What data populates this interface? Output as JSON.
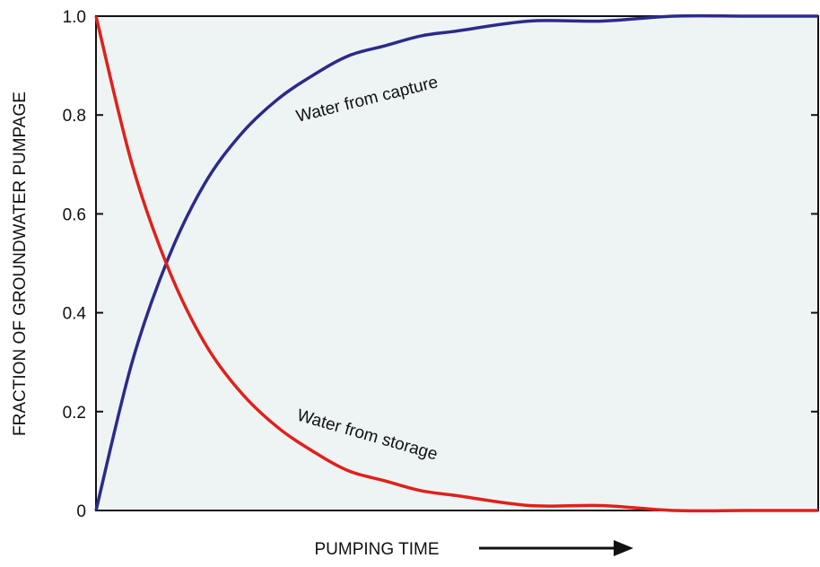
{
  "chart_data": {
    "type": "line",
    "y_label": "FRACTION OF GROUNDWATER PUMPAGE",
    "x_label": "PUMPING TIME",
    "x": [
      0,
      0.05,
      0.1,
      0.15,
      0.2,
      0.25,
      0.3,
      0.35,
      0.4,
      0.45,
      0.5,
      0.6,
      0.7,
      0.8,
      0.9,
      1.0
    ],
    "xlim": [
      0,
      1
    ],
    "ylim": [
      0,
      1
    ],
    "yticks": [
      0,
      0.2,
      0.4,
      0.6,
      0.8,
      {
        "value": 1,
        "label": "1.0"
      }
    ],
    "series": [
      {
        "name": "Water from capture",
        "color": "#2b2a8c",
        "values": [
          0,
          0.3,
          0.51,
          0.66,
          0.76,
          0.83,
          0.88,
          0.92,
          0.94,
          0.96,
          0.97,
          0.99,
          0.99,
          1.0,
          1.0,
          1.0
        ]
      },
      {
        "name": "Water from storage",
        "color": "#e0201b",
        "values": [
          1,
          0.7,
          0.49,
          0.34,
          0.24,
          0.17,
          0.12,
          0.08,
          0.06,
          0.04,
          0.03,
          0.01,
          0.01,
          0,
          0,
          0
        ]
      }
    ],
    "background": "#eef4f4"
  }
}
